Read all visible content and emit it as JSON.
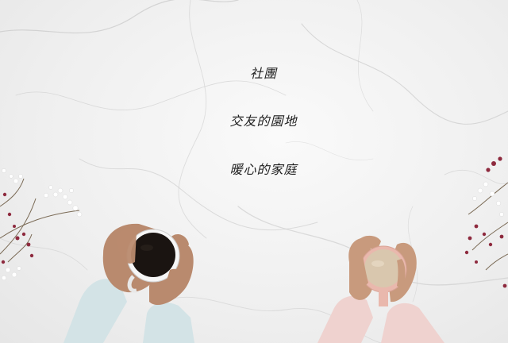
{
  "caption": {
    "line1": "社團",
    "line2": "交友的園地",
    "line3": "暖心的家庭"
  },
  "scene": {
    "objects": [
      "white-marble-table",
      "black-coffee-cup",
      "latte-cup",
      "blue-sleeve",
      "pink-sleeve",
      "white-flowers",
      "red-flowers"
    ],
    "colors": {
      "marble": "#f2f2f2",
      "vein": "#c9c9c9",
      "coffee": "#1a1411",
      "latte": "#d9c7ae",
      "cup_pink": "#e9b8ad",
      "sleeve_blue": "#d3e3e6",
      "sleeve_pink": "#efd2cf",
      "skin": "#b98a6e",
      "flower_red": "#8e2a3e"
    }
  }
}
